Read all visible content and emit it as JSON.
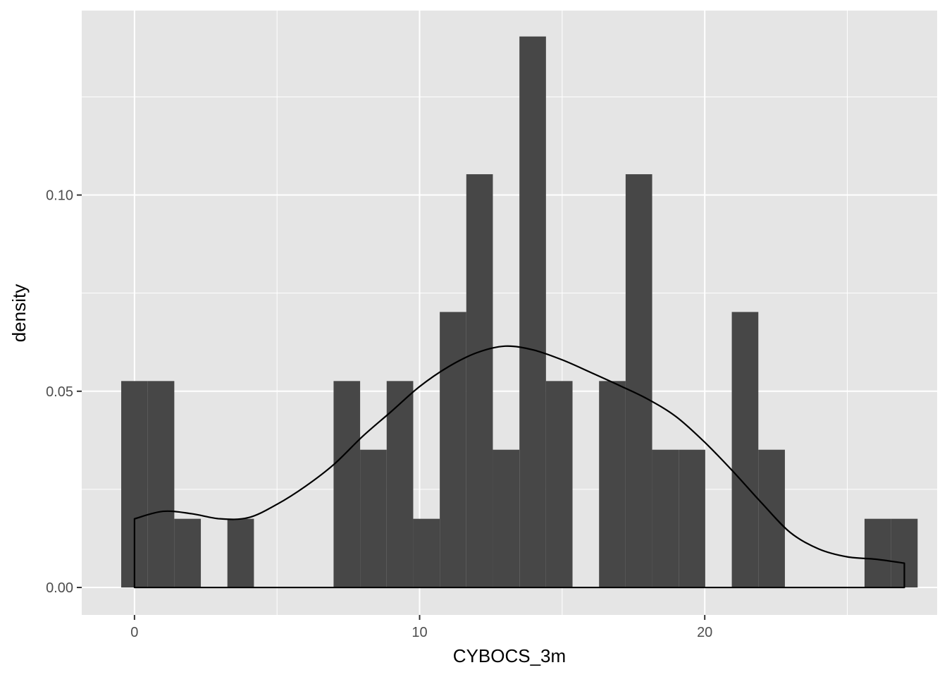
{
  "chart_data": {
    "type": "histogram",
    "title": "",
    "xlabel": "CYBOCS_3m",
    "ylabel": "density",
    "xlim": [
      -1.85,
      28.15
    ],
    "ylim": [
      -0.007,
      0.147
    ],
    "x_ticks": [
      {
        "value": 0,
        "label": "0"
      },
      {
        "value": 10,
        "label": "10"
      },
      {
        "value": 20,
        "label": "20"
      }
    ],
    "y_ticks": [
      {
        "value": 0.0,
        "label": "0.00"
      },
      {
        "value": 0.05,
        "label": "0.05"
      },
      {
        "value": 0.1,
        "label": "0.10"
      }
    ],
    "x_minor": [
      5,
      15,
      25
    ],
    "y_minor": [
      0.025,
      0.075,
      0.125
    ],
    "grid": true,
    "bin_width": 0.931,
    "bins": [
      {
        "center": 0.0,
        "density": 0.0526
      },
      {
        "center": 0.931,
        "density": 0.0526
      },
      {
        "center": 1.862,
        "density": 0.0175
      },
      {
        "center": 2.793,
        "density": 0.0
      },
      {
        "center": 3.724,
        "density": 0.0175
      },
      {
        "center": 4.655,
        "density": 0.0
      },
      {
        "center": 5.586,
        "density": 0.0
      },
      {
        "center": 6.517,
        "density": 0.0
      },
      {
        "center": 7.448,
        "density": 0.0526
      },
      {
        "center": 8.379,
        "density": 0.0351
      },
      {
        "center": 9.31,
        "density": 0.0526
      },
      {
        "center": 10.241,
        "density": 0.0175
      },
      {
        "center": 11.172,
        "density": 0.0702
      },
      {
        "center": 12.103,
        "density": 0.1053
      },
      {
        "center": 13.034,
        "density": 0.0351
      },
      {
        "center": 13.966,
        "density": 0.1404
      },
      {
        "center": 14.897,
        "density": 0.0526
      },
      {
        "center": 15.828,
        "density": 0.0
      },
      {
        "center": 16.759,
        "density": 0.0526
      },
      {
        "center": 17.69,
        "density": 0.1053
      },
      {
        "center": 18.621,
        "density": 0.0351
      },
      {
        "center": 19.552,
        "density": 0.0351
      },
      {
        "center": 20.483,
        "density": 0.0
      },
      {
        "center": 21.414,
        "density": 0.0702
      },
      {
        "center": 22.345,
        "density": 0.0351
      },
      {
        "center": 23.276,
        "density": 0.0
      },
      {
        "center": 24.207,
        "density": 0.0
      },
      {
        "center": 25.138,
        "density": 0.0
      },
      {
        "center": 26.069,
        "density": 0.0175
      },
      {
        "center": 27.0,
        "density": 0.0175
      }
    ],
    "density_curve": {
      "x": [
        0,
        1,
        2,
        3,
        4,
        5,
        6,
        7,
        8,
        9,
        10,
        11,
        12,
        13,
        14,
        15,
        16,
        17,
        18,
        19,
        20,
        21,
        22,
        23,
        24,
        25,
        26,
        27
      ],
      "y": [
        0.0175,
        0.0194,
        0.0188,
        0.0175,
        0.0178,
        0.0212,
        0.0258,
        0.0314,
        0.0385,
        0.0448,
        0.0512,
        0.0562,
        0.0598,
        0.0615,
        0.0605,
        0.058,
        0.0548,
        0.0515,
        0.048,
        0.0435,
        0.037,
        0.0295,
        0.0215,
        0.014,
        0.0098,
        0.0078,
        0.0072,
        0.0062
      ]
    },
    "colors": {
      "panel_background": "#e5e5e5",
      "grid_major": "#ffffff",
      "bar_fill": "#474747",
      "curve": "#000000",
      "tick": "#333333",
      "tick_label": "#4d4d4d"
    }
  }
}
